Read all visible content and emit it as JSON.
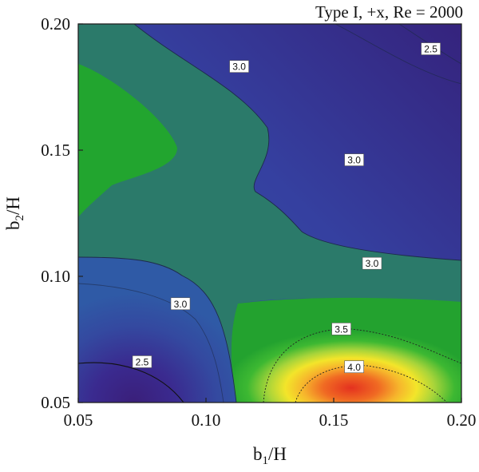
{
  "chart_data": {
    "type": "contour",
    "title": "Type I, +x, Re = 2000",
    "xlabel_main": "b",
    "xlabel_sub": "1",
    "xlabel_tail": "/H",
    "ylabel_main": "b",
    "ylabel_sub": "2",
    "ylabel_tail": "/H",
    "xlim": [
      0.05,
      0.2
    ],
    "ylim": [
      0.05,
      0.2
    ],
    "x_ticks": [
      "0.05",
      "0.10",
      "0.15",
      "0.20"
    ],
    "y_ticks": [
      "0.05",
      "0.10",
      "0.15",
      "0.20"
    ],
    "contour_labels": [
      {
        "text": "2.5",
        "x": 0.188,
        "y": 0.19
      },
      {
        "text": "3.0",
        "x": 0.113,
        "y": 0.183
      },
      {
        "text": "3.0",
        "x": 0.158,
        "y": 0.146
      },
      {
        "text": "3.0",
        "x": 0.165,
        "y": 0.105
      },
      {
        "text": "3.0",
        "x": 0.09,
        "y": 0.089
      },
      {
        "text": "2.5",
        "x": 0.075,
        "y": 0.066
      },
      {
        "text": "3.5",
        "x": 0.153,
        "y": 0.079
      },
      {
        "text": "4.0",
        "x": 0.158,
        "y": 0.064
      }
    ],
    "colors": {
      "deep_blue": "#3a2a8f",
      "blue": "#2f3f9e",
      "mid_blue": "#2f5aa6",
      "teal": "#2b7a6a",
      "green": "#20a52e",
      "yellow": "#f0e628",
      "orange": "#f08a25",
      "red": "#e33a24"
    }
  }
}
